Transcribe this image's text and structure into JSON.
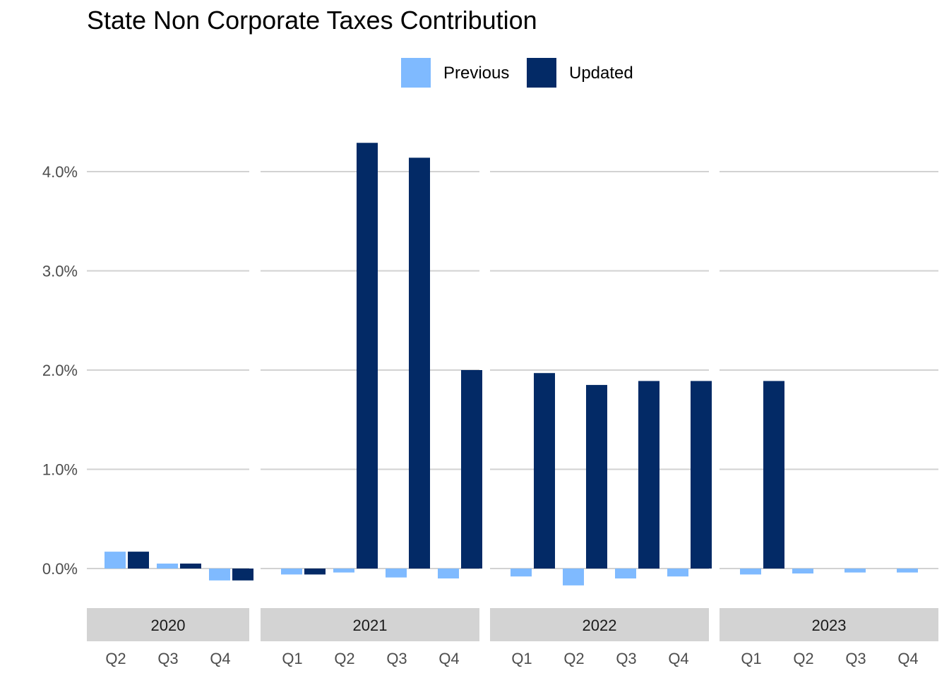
{
  "chart_data": {
    "type": "bar",
    "title": "State Non Corporate Taxes Contribution",
    "xlabel": "",
    "ylabel": "",
    "ylim": [
      -0.4,
      4.6
    ],
    "y_ticks": [
      0.0,
      1.0,
      2.0,
      3.0,
      4.0
    ],
    "y_tick_labels": [
      "0.0%",
      "1.0%",
      "2.0%",
      "3.0%",
      "4.0%"
    ],
    "grid": true,
    "legend_position": "top",
    "legend": [
      {
        "name": "Previous",
        "color": "#7fbaff"
      },
      {
        "name": "Updated",
        "color": "#032a66"
      }
    ],
    "facets": [
      {
        "label": "2020",
        "categories": [
          "Q2",
          "Q3",
          "Q4"
        ],
        "series": [
          {
            "name": "Previous",
            "values": [
              0.17,
              0.05,
              -0.12
            ]
          },
          {
            "name": "Updated",
            "values": [
              0.17,
              0.05,
              -0.12
            ]
          }
        ]
      },
      {
        "label": "2021",
        "categories": [
          "Q1",
          "Q2",
          "Q3",
          "Q4"
        ],
        "series": [
          {
            "name": "Previous",
            "values": [
              -0.06,
              -0.04,
              -0.09,
              -0.1
            ]
          },
          {
            "name": "Updated",
            "values": [
              -0.06,
              4.29,
              4.14,
              2.0
            ]
          }
        ]
      },
      {
        "label": "2022",
        "categories": [
          "Q1",
          "Q2",
          "Q3",
          "Q4"
        ],
        "series": [
          {
            "name": "Previous",
            "values": [
              -0.08,
              -0.17,
              -0.1,
              -0.08
            ]
          },
          {
            "name": "Updated",
            "values": [
              1.97,
              1.85,
              1.89,
              1.89
            ]
          }
        ]
      },
      {
        "label": "2023",
        "categories": [
          "Q1",
          "Q2",
          "Q3",
          "Q4"
        ],
        "series": [
          {
            "name": "Previous",
            "values": [
              -0.06,
              -0.05,
              -0.04,
              -0.04
            ]
          },
          {
            "name": "Updated",
            "values": [
              1.89,
              null,
              null,
              null
            ]
          }
        ]
      }
    ]
  }
}
